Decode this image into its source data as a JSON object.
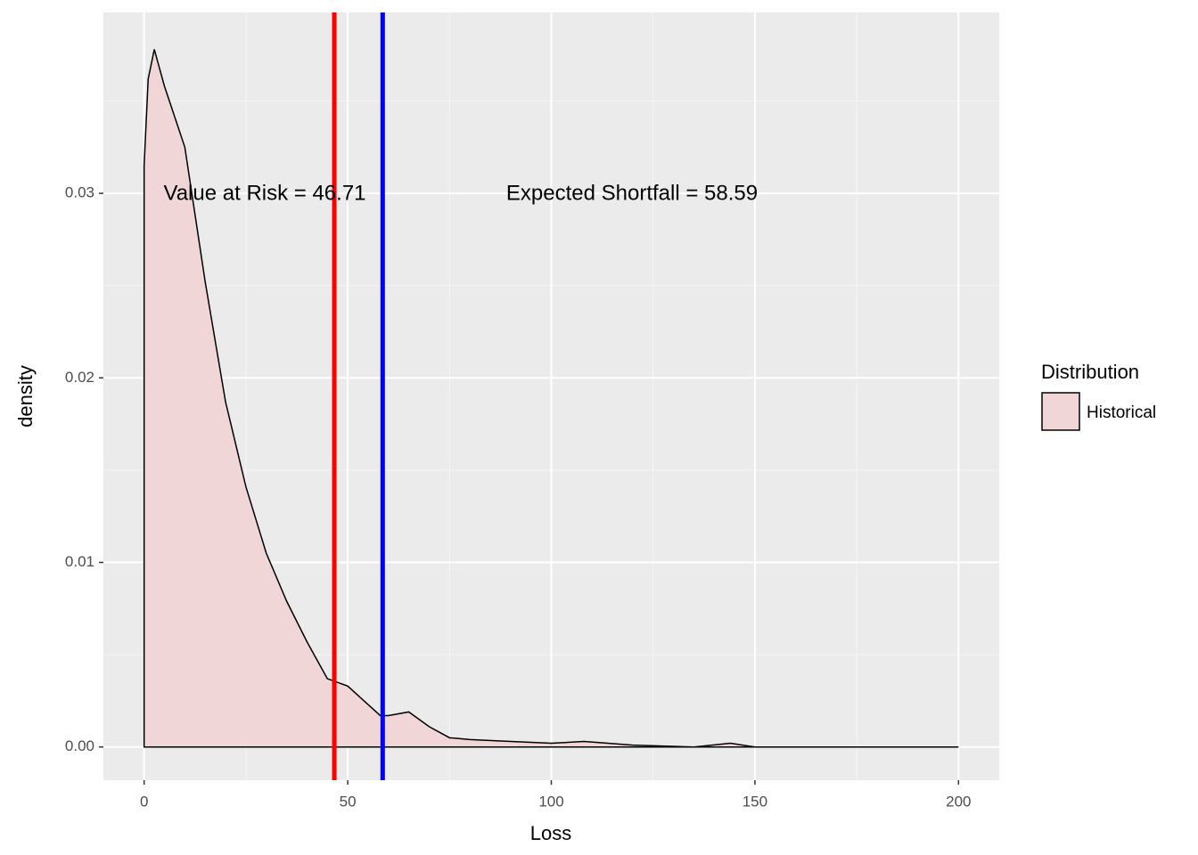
{
  "chart_data": {
    "type": "density",
    "x_label": "Loss",
    "y_label": "density",
    "x": [
      0,
      1,
      2.5,
      5,
      10,
      15,
      20,
      25,
      30,
      35,
      40,
      45,
      50,
      55,
      58,
      60,
      65,
      70,
      75,
      80,
      90,
      100,
      108,
      120,
      135,
      144,
      150,
      200
    ],
    "series": [
      {
        "name": "Historical",
        "color": "#f0d6d6",
        "outline": "#000000",
        "values": [
          0.0315,
          0.0362,
          0.0378,
          0.0358,
          0.0325,
          0.0252,
          0.0187,
          0.0141,
          0.0105,
          0.0079,
          0.0057,
          0.0037,
          0.0033,
          0.0023,
          0.0017,
          0.0017,
          0.0019,
          0.0011,
          0.0005,
          0.0004,
          0.0003,
          0.0002,
          0.0003,
          0.0001,
          0.0,
          0.0002,
          0.0,
          0.0
        ]
      }
    ],
    "vlines": [
      {
        "value": 46.71,
        "color": "#ff0000"
      },
      {
        "value": 58.59,
        "color": "#0000ff"
      }
    ],
    "annotations": [
      "Value at Risk = 46.71",
      "Expected Shortfall = 58.59"
    ],
    "legend_title": "Distribution",
    "legend_position": "right",
    "xlim": [
      -10,
      210
    ],
    "xticks": [
      0,
      50,
      100,
      150,
      200
    ],
    "ylim": [
      -0.0018,
      0.0398
    ],
    "yticks": [
      {
        "value": 0,
        "label": "0.00"
      },
      0.01,
      0.02,
      0.03
    ],
    "grid": true
  }
}
